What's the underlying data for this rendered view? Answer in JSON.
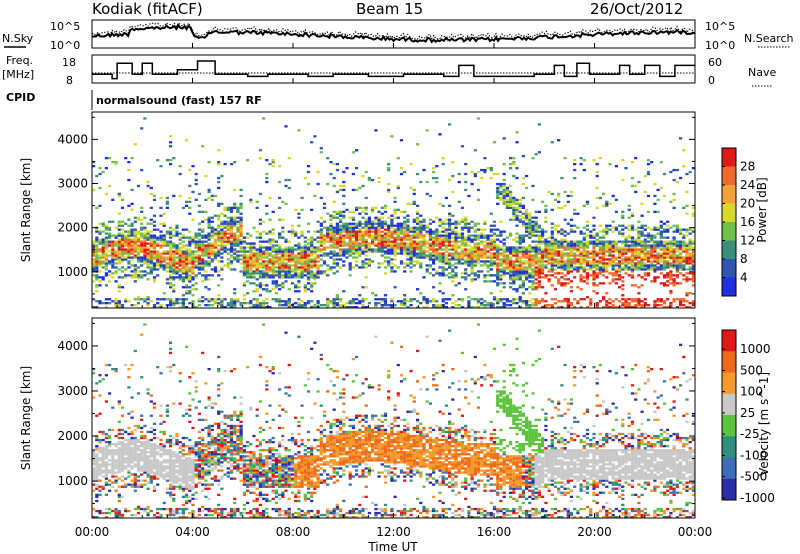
{
  "header": {
    "station": "Kodiak (fitACF)",
    "beam": "Beam 15",
    "date": "26/Oct/2012"
  },
  "noise_panel": {
    "left_label": "N.Sky",
    "right_label": "N.Search",
    "ticks_left": [
      "10^5",
      "10^0"
    ],
    "ticks_right": [
      "10^5",
      "10^0"
    ],
    "legend_left_style": "solid",
    "legend_right_style": "dotted"
  },
  "freq_panel": {
    "label_line1": "Freq.",
    "label_line2": "[MHz]",
    "ticks_left": [
      "18",
      "8"
    ],
    "ticks_right": [
      "60",
      "0"
    ],
    "right_label": "Nave"
  },
  "cpid": {
    "label": "CPID",
    "program": "normalsound (fast) 157 RF"
  },
  "x_axis": {
    "label": "Time UT",
    "ticks": [
      "00:00",
      "04:00",
      "08:00",
      "12:00",
      "16:00",
      "20:00",
      "00:00"
    ]
  },
  "chart_data": [
    {
      "type": "heatmap",
      "name": "power",
      "ylabel": "Slant Range [km]",
      "yticks": [
        "1000",
        "2000",
        "3000",
        "4000"
      ],
      "ylim": [
        180,
        4620
      ],
      "xlim_hours": [
        0,
        24
      ],
      "colorbar_label": "Power [dB]",
      "colorbar_ticks": [
        "4",
        "8",
        "12",
        "16",
        "20",
        "24",
        "28"
      ],
      "colorbar_colors": [
        "#1f2fe0",
        "#2f55b0",
        "#3a8f7a",
        "#6ec04a",
        "#d8d82a",
        "#f2a23a",
        "#ee6a2a",
        "#e01818"
      ]
    },
    {
      "type": "heatmap",
      "name": "velocity",
      "ylabel": "Slant Range [km]",
      "yticks": [
        "1000",
        "2000",
        "3000",
        "4000"
      ],
      "ylim": [
        180,
        4620
      ],
      "xlim_hours": [
        0,
        24
      ],
      "colorbar_label": "Velocity [m s^-1]",
      "colorbar_ticks": [
        "1000",
        "500",
        "100",
        "25",
        "-25",
        "-100",
        "-500",
        "-1000"
      ],
      "colorbar_colors": [
        "#2c2ca8",
        "#3a6fb8",
        "#2e8f7e",
        "#5cc43c",
        "#c8c8c8",
        "#f29a2a",
        "#ee6a1a",
        "#e01818"
      ]
    }
  ]
}
